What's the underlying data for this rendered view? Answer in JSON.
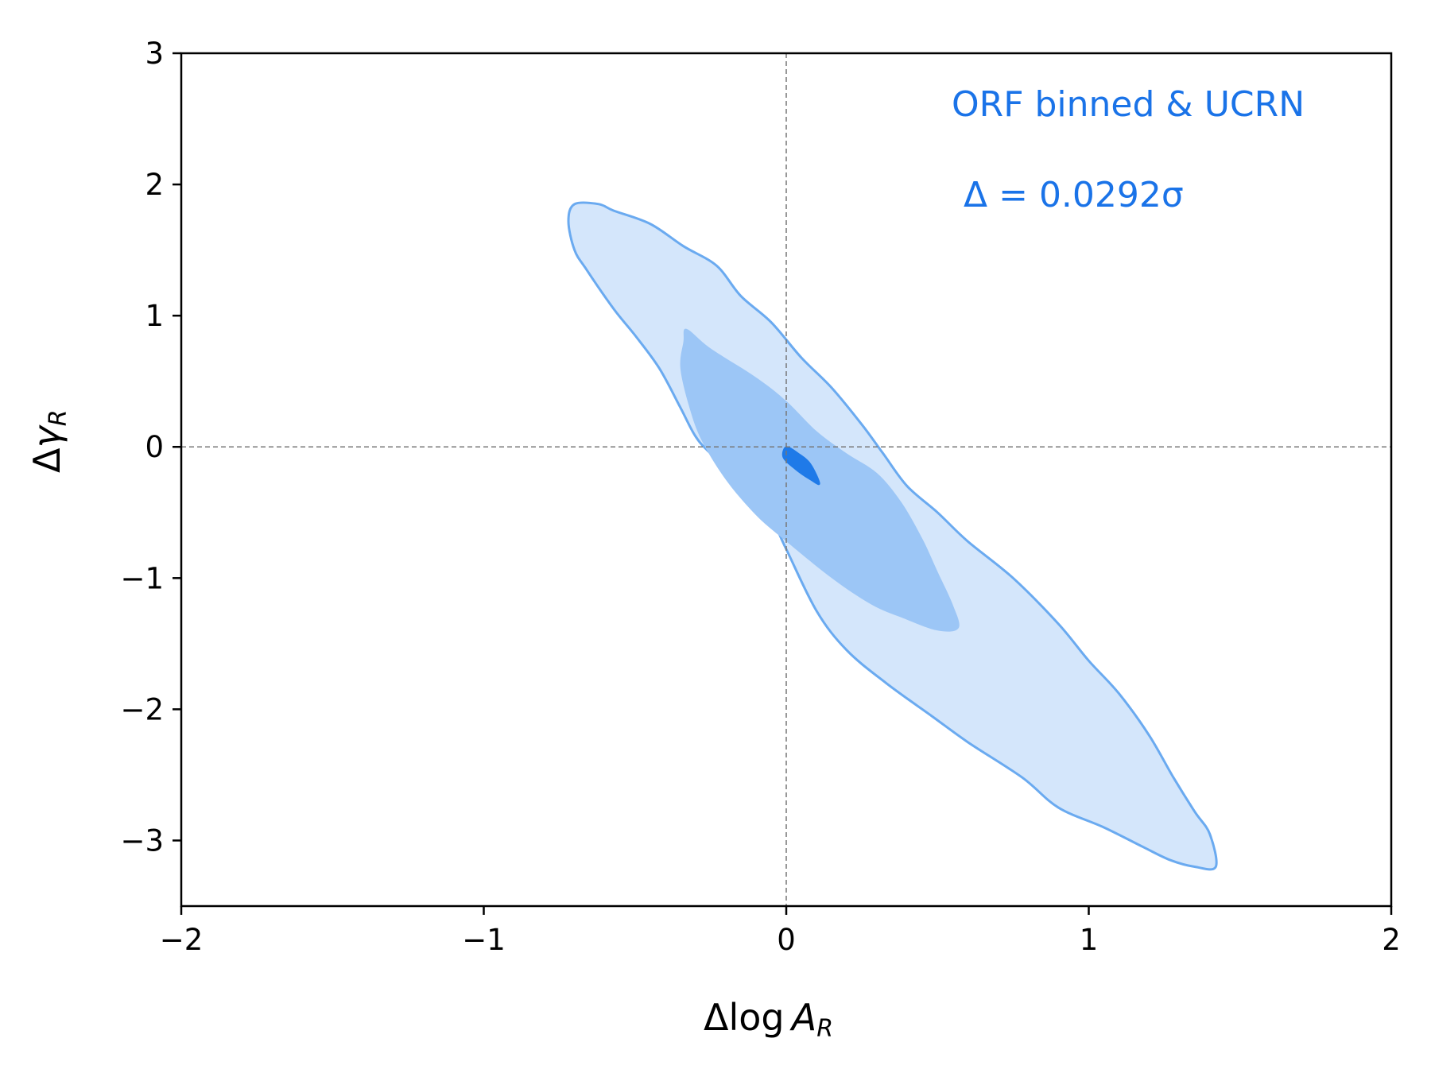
{
  "chart_data": {
    "type": "contour",
    "xlabel": {
      "main": "Δlog ",
      "var": "A",
      "sub": "R"
    },
    "ylabel": {
      "main": "Δ",
      "var": "γ",
      "sub": "R"
    },
    "xlim": [
      -2,
      2
    ],
    "ylim": [
      -3.5,
      3
    ],
    "xticks": [
      -2,
      -1,
      0,
      1,
      2
    ],
    "xtick_labels": [
      "−2",
      "−1",
      "0",
      "1",
      "2"
    ],
    "yticks": [
      -3,
      -2,
      -1,
      0,
      1,
      2,
      3
    ],
    "ytick_labels": [
      "−3",
      "−2",
      "−1",
      "0",
      "1",
      "2",
      "3"
    ],
    "reference_lines": {
      "x": 0,
      "y": 0
    },
    "legend_text": "ORF binned & UCRN",
    "delta_text": "Δ = 0.0292σ",
    "colors": {
      "outer_fill": "#d4e6fb",
      "outer_edge": "#6aaaf0",
      "inner_fill": "#9cc6f6",
      "core_fill": "#1f7ae8",
      "annotation": "#1a73e8",
      "ref_line": "#777777"
    },
    "contours": [
      {
        "level": "outer",
        "points": [
          [
            -0.7,
            1.85
          ],
          [
            -0.62,
            1.85
          ],
          [
            -0.57,
            1.8
          ],
          [
            -0.45,
            1.7
          ],
          [
            -0.34,
            1.53
          ],
          [
            -0.23,
            1.38
          ],
          [
            -0.15,
            1.15
          ],
          [
            -0.05,
            0.95
          ],
          [
            0.05,
            0.68
          ],
          [
            0.15,
            0.45
          ],
          [
            0.25,
            0.17
          ],
          [
            0.32,
            -0.05
          ],
          [
            0.4,
            -0.3
          ],
          [
            0.5,
            -0.5
          ],
          [
            0.6,
            -0.72
          ],
          [
            0.75,
            -1.0
          ],
          [
            0.9,
            -1.35
          ],
          [
            1.0,
            -1.63
          ],
          [
            1.1,
            -1.88
          ],
          [
            1.2,
            -2.2
          ],
          [
            1.28,
            -2.52
          ],
          [
            1.35,
            -2.78
          ],
          [
            1.4,
            -2.95
          ],
          [
            1.42,
            -3.2
          ],
          [
            1.35,
            -3.2
          ],
          [
            1.27,
            -3.15
          ],
          [
            1.18,
            -3.05
          ],
          [
            1.05,
            -2.9
          ],
          [
            0.9,
            -2.75
          ],
          [
            0.78,
            -2.52
          ],
          [
            0.6,
            -2.25
          ],
          [
            0.48,
            -2.05
          ],
          [
            0.33,
            -1.8
          ],
          [
            0.2,
            -1.55
          ],
          [
            0.1,
            -1.25
          ],
          [
            0.0,
            -0.78
          ],
          [
            -0.05,
            -0.55
          ],
          [
            -0.15,
            -0.25
          ],
          [
            -0.25,
            -0.05
          ],
          [
            -0.3,
            0.08
          ],
          [
            -0.35,
            0.3
          ],
          [
            -0.42,
            0.6
          ],
          [
            -0.5,
            0.85
          ],
          [
            -0.57,
            1.05
          ],
          [
            -0.66,
            1.35
          ],
          [
            -0.7,
            1.5
          ],
          [
            -0.72,
            1.72
          ]
        ]
      },
      {
        "level": "inner",
        "points": [
          [
            -0.33,
            0.9
          ],
          [
            -0.25,
            0.75
          ],
          [
            -0.1,
            0.53
          ],
          [
            0.0,
            0.35
          ],
          [
            0.1,
            0.12
          ],
          [
            0.2,
            -0.05
          ],
          [
            0.3,
            -0.2
          ],
          [
            0.38,
            -0.42
          ],
          [
            0.45,
            -0.7
          ],
          [
            0.5,
            -0.95
          ],
          [
            0.55,
            -1.2
          ],
          [
            0.57,
            -1.38
          ],
          [
            0.5,
            -1.4
          ],
          [
            0.38,
            -1.3
          ],
          [
            0.28,
            -1.2
          ],
          [
            0.15,
            -1.0
          ],
          [
            0.0,
            -0.72
          ],
          [
            -0.1,
            -0.52
          ],
          [
            -0.2,
            -0.25
          ],
          [
            -0.28,
            0.05
          ],
          [
            -0.32,
            0.3
          ],
          [
            -0.35,
            0.6
          ],
          [
            -0.34,
            0.8
          ]
        ]
      },
      {
        "level": "core",
        "points": [
          [
            0.0,
            0.0
          ],
          [
            0.04,
            -0.05
          ],
          [
            0.08,
            -0.13
          ],
          [
            0.11,
            -0.28
          ],
          [
            0.08,
            -0.25
          ],
          [
            0.03,
            -0.17
          ],
          [
            -0.01,
            -0.08
          ]
        ]
      }
    ]
  }
}
